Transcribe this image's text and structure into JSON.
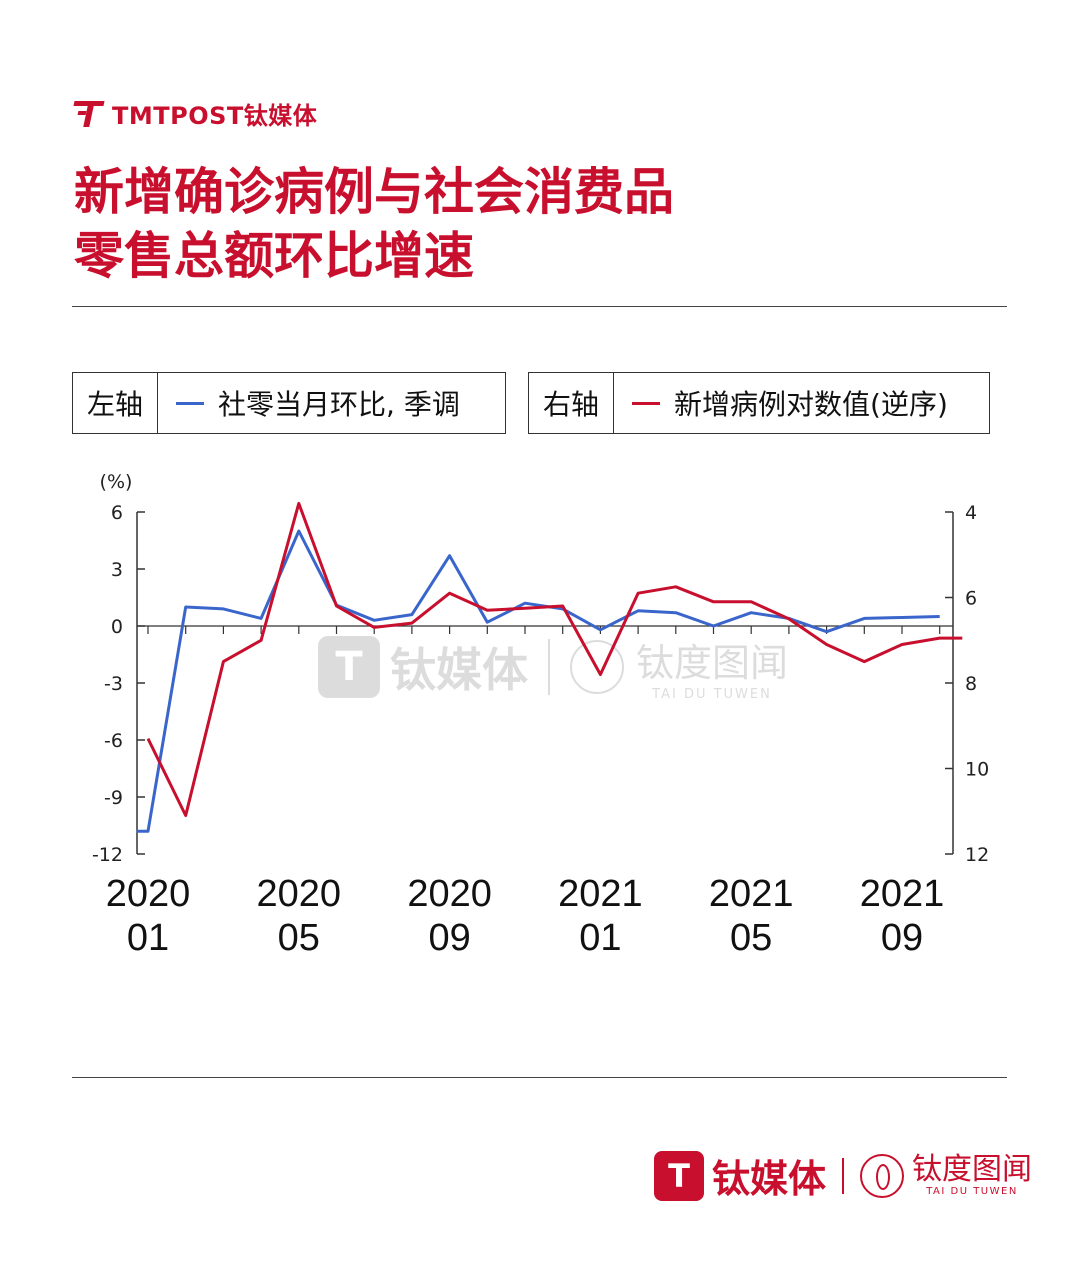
{
  "brand": {
    "logo_text": "TMTPOST钛媒体"
  },
  "title_lines": [
    "新增确诊病例与社会消费品",
    "零售总额环比增速"
  ],
  "legend": {
    "left_axis_label": "左轴",
    "left_series_label": "社零当月环比, 季调",
    "right_axis_label": "右轴",
    "right_series_label": "新增病例对数值(逆序)"
  },
  "colors": {
    "accent": "#c8102e",
    "blue_series": "#3a66cc",
    "red_series": "#c8102e"
  },
  "watermark": {
    "mark": "T",
    "text": "钛媒体",
    "right_cn": "钛度图闻",
    "right_en": "TAI DU TUWEN"
  },
  "footer": {
    "mark": "T",
    "text": "钛媒体",
    "right_cn": "钛度图闻",
    "right_en": "TAI DU TUWEN"
  },
  "chart_data": {
    "type": "line",
    "left_axis": {
      "unit": "(%)",
      "ylim": [
        -12,
        6
      ],
      "ticks": [
        6,
        3,
        0,
        -3,
        -6,
        -9,
        -12
      ]
    },
    "right_axis": {
      "ylim": [
        4,
        12
      ],
      "inverted": true,
      "ticks": [
        4,
        6,
        8,
        10,
        12
      ]
    },
    "x_tick_labels": [
      {
        "top": "2020",
        "bottom": "01",
        "index": 0
      },
      {
        "top": "2020",
        "bottom": "05",
        "index": 4
      },
      {
        "top": "2020",
        "bottom": "09",
        "index": 8
      },
      {
        "top": "2021",
        "bottom": "01",
        "index": 12
      },
      {
        "top": "2021",
        "bottom": "05",
        "index": 16
      },
      {
        "top": "2021",
        "bottom": "09",
        "index": 20
      }
    ],
    "series": [
      {
        "name": "社零当月环比, 季调",
        "axis": "left",
        "color": "#3a66cc",
        "points": [
          [
            -0.3,
            -10.8
          ],
          [
            0,
            -10.8
          ],
          [
            1,
            1.0
          ],
          [
            2,
            0.9
          ],
          [
            3,
            0.4
          ],
          [
            4,
            5.0
          ],
          [
            5,
            1.1
          ],
          [
            6,
            0.3
          ],
          [
            7,
            0.6
          ],
          [
            8,
            3.7
          ],
          [
            9,
            0.2
          ],
          [
            10,
            1.2
          ],
          [
            11,
            0.9
          ],
          [
            12,
            -0.2
          ],
          [
            13,
            0.8
          ],
          [
            14,
            0.7
          ],
          [
            15,
            0.0
          ],
          [
            16,
            0.7
          ],
          [
            17,
            0.4
          ],
          [
            18,
            -0.3
          ],
          [
            19,
            0.4
          ],
          [
            20,
            0.45
          ],
          [
            21,
            0.5
          ]
        ]
      },
      {
        "name": "新增病例对数值(逆序)",
        "axis": "right",
        "color": "#c8102e",
        "points": [
          [
            0,
            9.3
          ],
          [
            1,
            11.1
          ],
          [
            2,
            7.5
          ],
          [
            3,
            7.0
          ],
          [
            4,
            3.8
          ],
          [
            5,
            6.2
          ],
          [
            6,
            6.7
          ],
          [
            7,
            6.6
          ],
          [
            8,
            5.9
          ],
          [
            9,
            6.3
          ],
          [
            10,
            6.25
          ],
          [
            11,
            6.2
          ],
          [
            12,
            7.8
          ],
          [
            13,
            5.9
          ],
          [
            14,
            5.75
          ],
          [
            15,
            6.1
          ],
          [
            16,
            6.1
          ],
          [
            17,
            6.5
          ],
          [
            18,
            7.1
          ],
          [
            19,
            7.5
          ],
          [
            20,
            7.1
          ],
          [
            21,
            6.95
          ],
          [
            21.6,
            6.95
          ]
        ]
      }
    ]
  }
}
